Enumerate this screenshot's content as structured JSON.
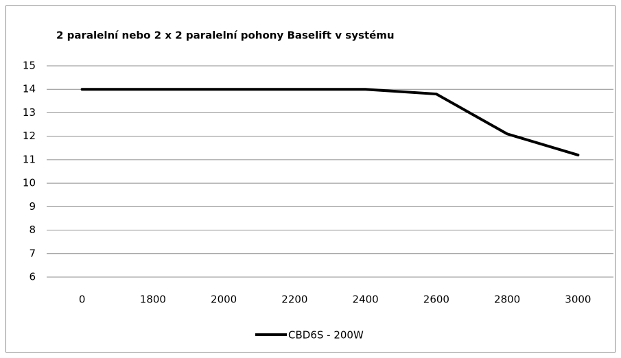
{
  "chart_data": {
    "type": "line",
    "title": "2 paralelní nebo 2 x 2 paralelní pohony Baselift v systému",
    "categories": [
      "0",
      "1800",
      "2000",
      "2200",
      "2400",
      "2600",
      "2800",
      "3000"
    ],
    "series": [
      {
        "name": "CBD6S - 200W",
        "color": "#000000",
        "values": [
          14,
          14,
          14,
          14,
          14,
          13.8,
          12.1,
          11.2
        ]
      }
    ],
    "ylim": [
      6,
      15
    ],
    "yticks": [
      6,
      7,
      8,
      9,
      10,
      11,
      12,
      13,
      14,
      15
    ],
    "grid": true,
    "legend": "bottom"
  }
}
